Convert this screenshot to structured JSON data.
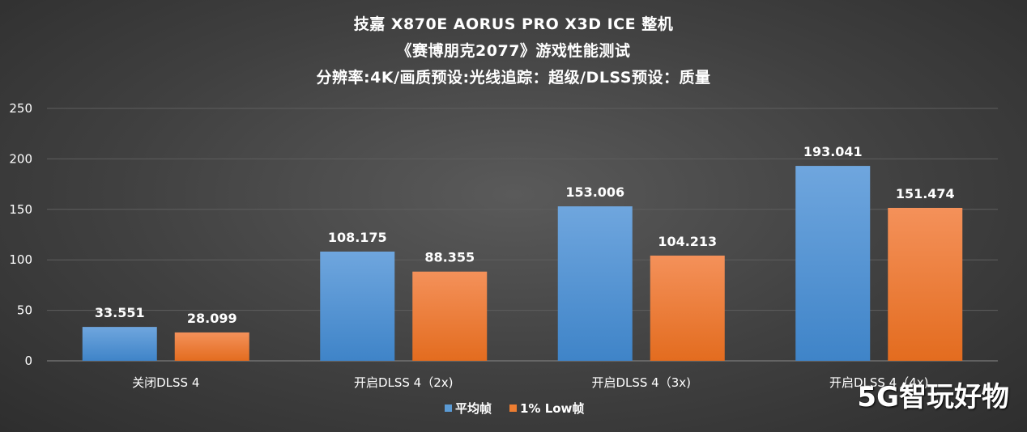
{
  "chart_data": {
    "type": "bar",
    "title": "技嘉 X870E AORUS PRO X3D ICE 整机",
    "subtitle": "《赛博朋克2077》游戏性能测试",
    "subtitle2": "分辨率:4K/画质预设:光线追踪：超级/DLSS预设：质量",
    "categories": [
      "关闭DLSS 4",
      "开启DLSS 4（2x)",
      "开启DLSS 4（3x)",
      "开启DLSS 4（4x)"
    ],
    "series": [
      {
        "name": "平均帧",
        "values": [
          33.551,
          108.175,
          153.006,
          193.041
        ],
        "labels": [
          "33.551",
          "108.175",
          "153.006",
          "193.041"
        ]
      },
      {
        "name": "1% Low帧",
        "values": [
          28.099,
          88.355,
          104.213,
          151.474
        ],
        "labels": [
          "28.099",
          "88.355",
          "104.213",
          "151.474"
        ]
      }
    ],
    "ylim": [
      0,
      250
    ],
    "yticks": [
      "0",
      "50",
      "100",
      "150",
      "200",
      "250"
    ],
    "xlabel": "",
    "ylabel": "",
    "grid": true,
    "legend": "bottom",
    "colors": [
      "#5b9bd5",
      "#ed7d31"
    ]
  },
  "watermark": "5G智玩好物"
}
